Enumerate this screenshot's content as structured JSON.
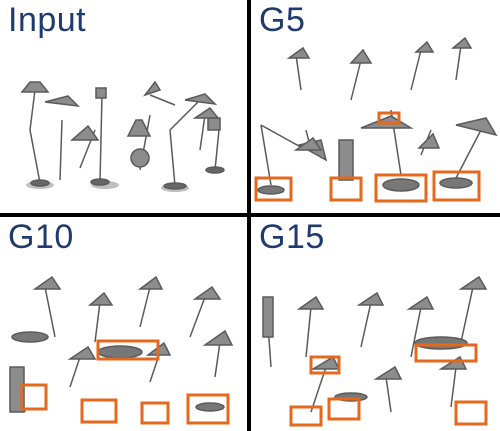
{
  "panels": [
    {
      "id": "input",
      "label": "Input"
    },
    {
      "id": "g5",
      "label": "G5"
    },
    {
      "id": "g10",
      "label": "G10"
    },
    {
      "id": "g15",
      "label": "G15"
    }
  ],
  "colors": {
    "divider": "#000000",
    "label_text": "#1f3a6e",
    "lamp_metal": "#8c8c8c",
    "lamp_dark": "#555555",
    "highlight_box": "#e4691c"
  }
}
